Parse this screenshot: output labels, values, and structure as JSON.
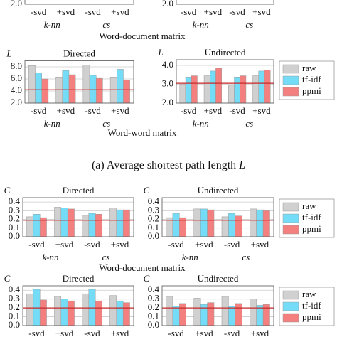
{
  "series": [
    {
      "name": "raw",
      "color": "#d0d0d0"
    },
    {
      "name": "tf-idf",
      "color": "#74dcf7"
    },
    {
      "name": "ppmi",
      "color": "#f3807f"
    }
  ],
  "section_labels": [
    "Word-document matrix",
    "Word-word matrix",
    "Word-document matrix"
  ],
  "caption": {
    "text": "(a) Average shortest path length",
    "symbol": "L"
  },
  "chart_data": [
    {
      "type": "bar",
      "categories": [
        "-svd",
        "+svd",
        "-svd",
        "+svd"
      ],
      "group_labels": [
        "k-nn",
        "cs"
      ],
      "ylim": [
        2,
        9
      ],
      "yticks": [
        {
          "value": 2,
          "label": "2.0"
        }
      ]
    },
    {
      "type": "bar",
      "categories": [
        "-svd",
        "+svd",
        "-svd",
        "+svd"
      ],
      "group_labels": [
        "k-nn",
        "cs"
      ],
      "ylim": [
        2,
        4.3
      ],
      "yticks": [
        {
          "value": 2,
          "label": "2.0"
        }
      ]
    },
    {
      "type": "bar",
      "title": "Directed",
      "ylabel": "L",
      "categories": [
        "-svd",
        "+svd",
        "-svd",
        "+svd"
      ],
      "group_labels": [
        "k-nn",
        "cs"
      ],
      "ylim": [
        2,
        9
      ],
      "yticks": [
        {
          "value": 2,
          "label": "2.0"
        },
        {
          "value": 4,
          "label": "4.0"
        },
        {
          "value": 6,
          "label": "6.0"
        },
        {
          "value": 8,
          "label": "8.0"
        }
      ],
      "values": [
        [
          8.2,
          6.2,
          8.3,
          6.2
        ],
        [
          7.0,
          7.4,
          6.6,
          7.6
        ],
        [
          6.0,
          6.7,
          6.1,
          5.8
        ]
      ],
      "reference": 4.2
    },
    {
      "type": "bar",
      "title": "Undirected",
      "ylabel": "L",
      "categories": [
        "-svd",
        "+svd",
        "-svd",
        "+svd"
      ],
      "group_labels": [
        "k-nn",
        "cs"
      ],
      "ylim": [
        2,
        4.3
      ],
      "yticks": [
        {
          "value": 2,
          "label": "2.0"
        },
        {
          "value": 3,
          "label": "3.0"
        },
        {
          "value": 4,
          "label": "4.0"
        }
      ],
      "values": [
        [
          3.0,
          3.45,
          2.95,
          3.45
        ],
        [
          3.35,
          3.7,
          3.35,
          3.7
        ],
        [
          3.45,
          3.85,
          3.45,
          3.75
        ]
      ],
      "reference": 3.05,
      "legend": true
    },
    {
      "type": "bar",
      "title": "Directed",
      "ylabel": "C",
      "categories": [
        "-svd",
        "+svd",
        "-svd",
        "+svd"
      ],
      "group_labels": [
        "k-nn",
        "cs"
      ],
      "ylim": [
        0,
        0.45
      ],
      "yticks": [
        {
          "value": 0,
          "label": "0.0"
        },
        0.1,
        0.2,
        0.3,
        0.4
      ],
      "values": [
        [
          0.23,
          0.34,
          0.24,
          0.33
        ],
        [
          0.26,
          0.33,
          0.27,
          0.31
        ],
        [
          0.22,
          0.32,
          0.26,
          0.31
        ]
      ],
      "reference": 0.19
    },
    {
      "type": "bar",
      "title": "Undirected",
      "ylabel": "C",
      "categories": [
        "-svd",
        "+svd",
        "-svd",
        "+svd"
      ],
      "group_labels": [
        "k-nn",
        "cs"
      ],
      "ylim": [
        0,
        0.45
      ],
      "yticks": [
        {
          "value": 0,
          "label": "0.0"
        },
        0.1,
        0.2,
        0.3,
        0.4
      ],
      "values": [
        [
          0.22,
          0.32,
          0.23,
          0.32
        ],
        [
          0.27,
          0.32,
          0.27,
          0.31
        ],
        [
          0.22,
          0.31,
          0.24,
          0.3
        ]
      ],
      "reference": 0.19,
      "legend": true
    },
    {
      "type": "bar",
      "title": "Directed",
      "ylabel": "C",
      "categories": [
        "-svd",
        "+svd",
        "-svd",
        "+svd"
      ],
      "ylim": [
        0,
        0.45
      ],
      "yticks": [
        {
          "value": 0,
          "label": "0.0"
        },
        0.1,
        0.2,
        0.3,
        0.4
      ],
      "values": [
        [
          0.36,
          0.33,
          0.36,
          0.34
        ],
        [
          0.41,
          0.3,
          0.41,
          0.28
        ],
        [
          0.29,
          0.28,
          0.28,
          0.26
        ]
      ],
      "reference": 0.2
    },
    {
      "type": "bar",
      "title": "Undirected",
      "ylabel": "C",
      "categories": [
        "-svd",
        "+svd",
        "-svd",
        "+svd"
      ],
      "ylim": [
        0,
        0.45
      ],
      "yticks": [
        {
          "value": 0,
          "label": "0.0"
        },
        0.1,
        0.2,
        0.3,
        0.4
      ],
      "values": [
        [
          0.33,
          0.31,
          0.33,
          0.3
        ],
        [
          0.22,
          0.24,
          0.22,
          0.23
        ],
        [
          0.25,
          0.26,
          0.25,
          0.24
        ]
      ],
      "reference": 0.2,
      "legend": true
    }
  ]
}
